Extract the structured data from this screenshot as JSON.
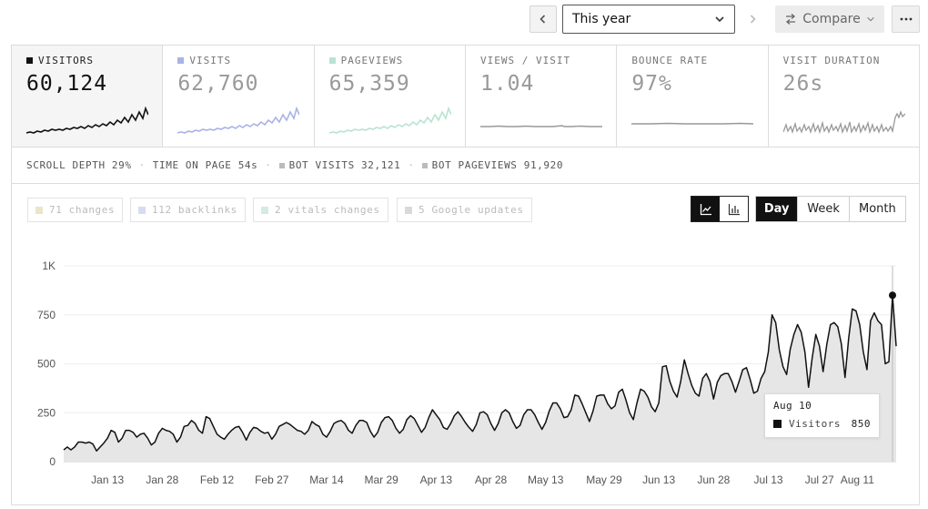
{
  "controls": {
    "period": "This year",
    "compare_label": "Compare"
  },
  "stats": [
    {
      "label": "VISITORS",
      "value": "60,124",
      "color": "#111111",
      "active": true
    },
    {
      "label": "VISITS",
      "value": "62,760",
      "color": "#a9b3e6",
      "active": false
    },
    {
      "label": "PAGEVIEWS",
      "value": "65,359",
      "color": "#b9e3d1",
      "active": false
    },
    {
      "label": "VIEWS / VISIT",
      "value": "1.04",
      "color": "#999999",
      "active": false
    },
    {
      "label": "BOUNCE RATE",
      "value": "97%",
      "color": "#999999",
      "active": false
    },
    {
      "label": "VISIT DURATION",
      "value": "26s",
      "color": "#999999",
      "active": false
    }
  ],
  "info": {
    "scroll_depth": "SCROLL DEPTH 29%",
    "time_on_page": "TIME ON PAGE 54s",
    "bot_visits": "BOT VISITS 32,121",
    "bot_pageviews": "BOT PAGEVIEWS 91,920"
  },
  "annotations": [
    {
      "label": "71 changes",
      "color": "#e9e6c8"
    },
    {
      "label": "112 backlinks",
      "color": "#d8dcef"
    },
    {
      "label": "2 vitals changes",
      "color": "#d4ebe3"
    },
    {
      "label": "5 Google updates",
      "color": "#d9d9d9"
    }
  ],
  "interval": {
    "day": "Day",
    "week": "Week",
    "month": "Month",
    "selected": "Day"
  },
  "tooltip": {
    "date": "Aug 10",
    "series": "Visitors",
    "value": "850"
  },
  "chart_data": {
    "type": "area",
    "series": [
      {
        "name": "Visitors"
      }
    ],
    "ylim": [
      0,
      1000
    ],
    "y_ticks": [
      "0",
      "250",
      "500",
      "750",
      "1K"
    ],
    "x_ticks": [
      "Jan 13",
      "Jan 28",
      "Feb 12",
      "Feb 27",
      "Mar 14",
      "Mar 29",
      "Apr 13",
      "Apr 28",
      "May 13",
      "May 29",
      "Jun 13",
      "Jun 28",
      "Jul 13",
      "Jul 27",
      "Aug 11"
    ],
    "x_tick_day_index": [
      12,
      27,
      42,
      57,
      72,
      87,
      102,
      117,
      132,
      148,
      163,
      178,
      193,
      207,
      222
    ],
    "values": [
      60,
      75,
      60,
      75,
      100,
      100,
      95,
      100,
      90,
      55,
      75,
      95,
      120,
      160,
      150,
      100,
      120,
      160,
      160,
      150,
      125,
      140,
      145,
      120,
      85,
      100,
      145,
      170,
      160,
      155,
      140,
      100,
      125,
      180,
      185,
      210,
      195,
      160,
      145,
      230,
      220,
      180,
      140,
      125,
      115,
      140,
      160,
      175,
      180,
      150,
      110,
      150,
      175,
      170,
      155,
      145,
      150,
      115,
      140,
      180,
      190,
      200,
      190,
      175,
      160,
      155,
      140,
      160,
      205,
      190,
      180,
      140,
      125,
      155,
      195,
      205,
      210,
      195,
      160,
      145,
      185,
      210,
      210,
      200,
      155,
      125,
      150,
      200,
      225,
      230,
      210,
      170,
      145,
      165,
      215,
      235,
      220,
      185,
      150,
      175,
      225,
      265,
      240,
      215,
      175,
      165,
      195,
      235,
      255,
      230,
      200,
      175,
      155,
      190,
      250,
      255,
      240,
      195,
      160,
      195,
      250,
      265,
      250,
      205,
      170,
      185,
      240,
      265,
      265,
      240,
      200,
      165,
      200,
      260,
      300,
      300,
      270,
      225,
      230,
      265,
      340,
      335,
      295,
      250,
      205,
      260,
      335,
      340,
      340,
      295,
      270,
      285,
      355,
      370,
      315,
      250,
      215,
      300,
      370,
      360,
      330,
      280,
      255,
      300,
      485,
      490,
      410,
      360,
      330,
      410,
      520,
      450,
      390,
      350,
      335,
      425,
      450,
      410,
      320,
      405,
      440,
      450,
      450,
      410,
      355,
      410,
      470,
      480,
      420,
      350,
      360,
      425,
      460,
      560,
      750,
      710,
      570,
      485,
      445,
      575,
      650,
      700,
      660,
      560,
      380,
      530,
      650,
      590,
      460,
      600,
      700,
      710,
      690,
      600,
      430,
      630,
      780,
      770,
      700,
      560,
      470,
      720,
      760,
      720,
      700,
      500,
      510,
      850,
      590
    ]
  }
}
